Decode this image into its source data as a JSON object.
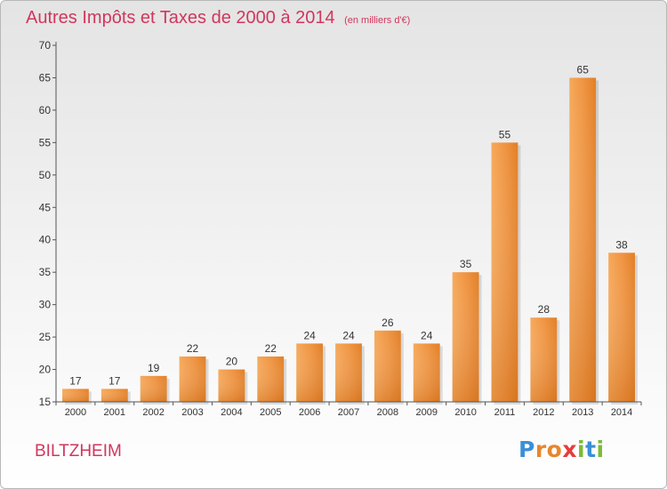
{
  "chart_data": {
    "type": "bar",
    "title": "Autres Impôts et Taxes de 2000 à 2014",
    "unit_note": "(en milliers d'€)",
    "categories": [
      "2000",
      "2001",
      "2002",
      "2003",
      "2004",
      "2005",
      "2006",
      "2007",
      "2008",
      "2009",
      "2010",
      "2011",
      "2012",
      "2013",
      "2014"
    ],
    "values": [
      17,
      17,
      19,
      22,
      20,
      22,
      24,
      24,
      26,
      24,
      35,
      55,
      28,
      65,
      38
    ],
    "ylim": [
      15,
      70
    ],
    "yticks": [
      15,
      20,
      25,
      30,
      35,
      40,
      45,
      50,
      55,
      60,
      65,
      70
    ],
    "grid": false,
    "bar_color": "#ee8a2b"
  },
  "footer": {
    "commune": "BILTZHEIM",
    "logo_letters": [
      {
        "ch": "P",
        "color": "#3b8fd6"
      },
      {
        "ch": "r",
        "color": "#e8862c"
      },
      {
        "ch": "o",
        "color": "#e8862c"
      },
      {
        "ch": "x",
        "color": "#e63c3c"
      },
      {
        "ch": "i",
        "color": "#7cbb35"
      },
      {
        "ch": "t",
        "color": "#3b8fd6"
      },
      {
        "ch": "i",
        "color": "#7cbb35"
      }
    ]
  }
}
